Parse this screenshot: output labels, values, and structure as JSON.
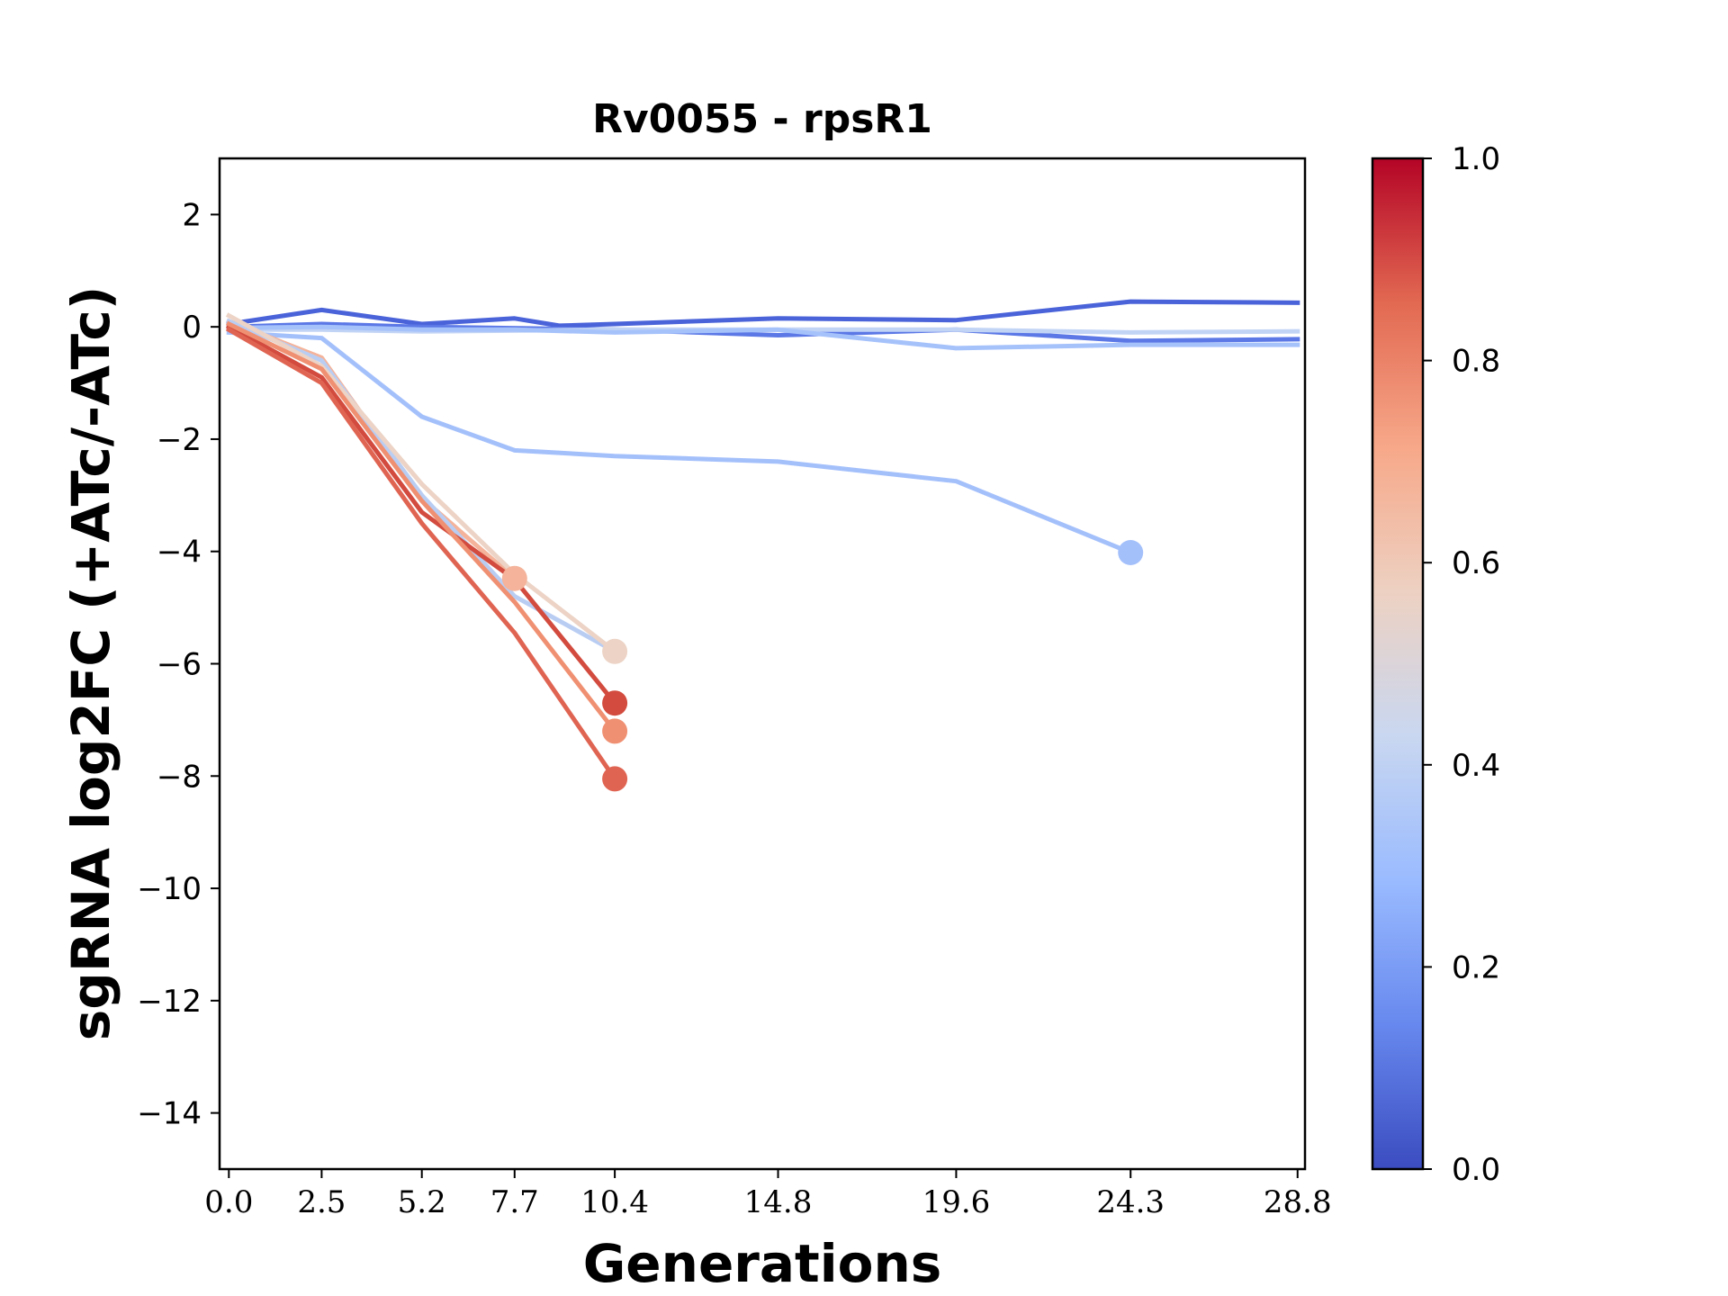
{
  "chart_data": {
    "type": "line",
    "title": "Rv0055 - rpsR1",
    "xlabel": "Generations",
    "ylabel": "sgRNA log2FC (+ATc/-ATc)",
    "xlim": [
      -0.25,
      29.0
    ],
    "ylim": [
      -15,
      3
    ],
    "x_ticks": [
      0.0,
      2.5,
      5.2,
      7.7,
      10.4,
      14.8,
      19.6,
      24.3,
      28.8
    ],
    "x_tick_labels": [
      "0.0",
      "2.5",
      "5.2",
      "7.7",
      "10.4",
      "14.8",
      "19.6",
      "24.3",
      "28.8"
    ],
    "y_ticks": [
      2,
      0,
      -2,
      -4,
      -6,
      -8,
      -10,
      -12,
      -14
    ],
    "y_tick_labels": [
      "2",
      "0",
      "−2",
      "−4",
      "−6",
      "−8",
      "−10",
      "−12",
      "−14"
    ],
    "colorbar": {
      "colormap": "coolwarm",
      "range": [
        0.0,
        1.0
      ],
      "ticks": [
        0.0,
        0.2,
        0.4,
        0.6,
        0.8,
        1.0
      ],
      "tick_labels": [
        "0.0",
        "0.2",
        "0.4",
        "0.6",
        "0.8",
        "1.0"
      ],
      "stops": [
        "#3b4cc0",
        "#6788ee",
        "#9abbff",
        "#c9d7f0",
        "#edd1c2",
        "#f7a889",
        "#e26952",
        "#b40426"
      ]
    },
    "series": [
      {
        "color": "#4a63d9",
        "x": [
          0.0,
          2.5,
          5.2,
          7.7,
          8.9,
          10.4,
          14.8,
          19.6,
          24.3,
          28.8
        ],
        "y": [
          0.05,
          0.3,
          0.05,
          0.15,
          0.02,
          0.05,
          0.15,
          0.12,
          0.45,
          0.43
        ],
        "endpoint": false
      },
      {
        "color": "#5b78e6",
        "x": [
          0.0,
          2.5,
          5.2,
          10.4,
          14.8,
          19.6,
          24.3,
          28.8
        ],
        "y": [
          0.0,
          0.05,
          0.0,
          -0.05,
          -0.15,
          -0.05,
          -0.25,
          -0.22
        ],
        "endpoint": false
      },
      {
        "color": "#c2d4f5",
        "x": [
          0.0,
          2.5,
          5.2,
          10.4,
          14.8,
          19.6,
          24.3,
          28.8
        ],
        "y": [
          -0.05,
          -0.05,
          -0.08,
          -0.05,
          -0.05,
          -0.05,
          -0.1,
          -0.08
        ],
        "endpoint": false
      },
      {
        "color": "#a6c2fb",
        "x": [
          0.0,
          2.5,
          5.2,
          7.7,
          10.4,
          14.8,
          19.6,
          24.3,
          28.8
        ],
        "y": [
          -0.02,
          0.0,
          -0.05,
          -0.05,
          -0.1,
          -0.05,
          -0.38,
          -0.32,
          -0.32
        ],
        "endpoint": false
      },
      {
        "color": "#a4c0fb",
        "x": [
          0.0,
          2.5,
          5.2,
          7.7,
          10.4,
          14.8,
          19.6,
          24.3
        ],
        "y": [
          -0.1,
          -0.2,
          -1.6,
          -2.2,
          -2.3,
          -2.4,
          -2.75,
          -4.02
        ],
        "endpoint": true
      },
      {
        "color": "#f4b39a",
        "x": [
          0.0,
          2.5,
          5.2,
          7.7
        ],
        "y": [
          0.1,
          -0.55,
          -3.05,
          -4.48
        ],
        "endpoint": true
      },
      {
        "color": "#b9cdf3",
        "x": [
          0.0,
          2.5,
          5.2,
          7.7,
          10.4
        ],
        "y": [
          0.1,
          -0.6,
          -3.0,
          -4.8,
          -5.78
        ],
        "endpoint": false
      },
      {
        "color": "#ecd3c5",
        "x": [
          0.0,
          2.5,
          5.2,
          7.7,
          10.4
        ],
        "y": [
          0.2,
          -0.7,
          -2.8,
          -4.4,
          -5.78
        ],
        "endpoint": true
      },
      {
        "color": "#d24b3e",
        "x": [
          0.0,
          2.5,
          5.2,
          7.7,
          10.4
        ],
        "y": [
          0.0,
          -0.9,
          -3.3,
          -4.5,
          -6.7
        ],
        "endpoint": true
      },
      {
        "color": "#f09072",
        "x": [
          0.0,
          2.5,
          5.2,
          7.7,
          10.4
        ],
        "y": [
          0.05,
          -0.75,
          -3.1,
          -4.9,
          -7.2
        ],
        "endpoint": true
      },
      {
        "color": "#e06452",
        "x": [
          0.0,
          2.5,
          5.2,
          7.7,
          10.4
        ],
        "y": [
          -0.05,
          -1.0,
          -3.5,
          -5.45,
          -8.05
        ],
        "endpoint": true
      }
    ]
  }
}
